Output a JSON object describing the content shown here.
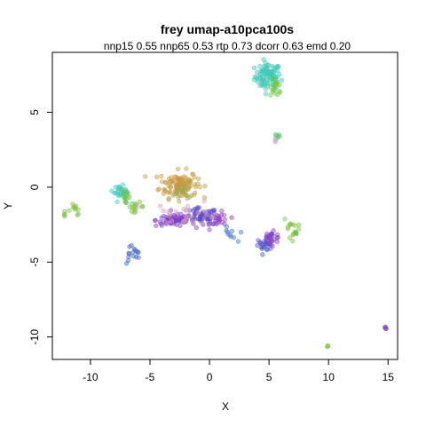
{
  "chart_data": {
    "type": "scatter",
    "title": "frey umap-a10pca100s",
    "subtitle": "nnp15 0.55 nnp65 0.53 rtp 0.73 dcorr 0.63 emd 0.20",
    "xlabel": "X",
    "ylabel": "Y",
    "xlim": [
      -13.2,
      15.8
    ],
    "ylim": [
      -11.5,
      9.0
    ],
    "xticks": [
      -10,
      -5,
      0,
      5,
      10,
      15
    ],
    "yticks": [
      -10,
      -5,
      0,
      5
    ],
    "xtick_labels": [
      "-10",
      "-5",
      "0",
      "5",
      "10",
      "15"
    ],
    "ytick_labels": [
      "-10",
      "-5",
      "0",
      "5"
    ],
    "grid": false,
    "legend": "none",
    "clusters": [
      {
        "color": "#40c8b8",
        "cx": 4.9,
        "cy": 7.4,
        "sx": 0.55,
        "sy": 0.45,
        "n": 90
      },
      {
        "color": "#70c840",
        "cx": 5.6,
        "cy": 6.6,
        "sx": 0.25,
        "sy": 0.3,
        "n": 18
      },
      {
        "color": "#50c870",
        "cx": 5.7,
        "cy": 3.4,
        "sx": 0.1,
        "sy": 0.1,
        "n": 6
      },
      {
        "color": "#c89840",
        "cx": -2.6,
        "cy": 0.2,
        "sx": 0.8,
        "sy": 0.45,
        "n": 110
      },
      {
        "color": "#a0a850",
        "cx": -2.2,
        "cy": -0.3,
        "sx": 0.6,
        "sy": 0.3,
        "n": 20
      },
      {
        "color": "#40c8c0",
        "cx": -7.5,
        "cy": -0.3,
        "sx": 0.25,
        "sy": 0.2,
        "n": 22
      },
      {
        "color": "#60c050",
        "cx": -7.0,
        "cy": -0.6,
        "sx": 0.2,
        "sy": 0.35,
        "n": 15
      },
      {
        "color": "#78c040",
        "cx": -6.2,
        "cy": -1.3,
        "sx": 0.35,
        "sy": 0.15,
        "n": 14
      },
      {
        "color": "#78c040",
        "cx": -11.3,
        "cy": -1.5,
        "sx": 0.3,
        "sy": 0.2,
        "n": 10
      },
      {
        "color": "#78c040",
        "cx": -12.2,
        "cy": -1.8,
        "sx": 0.1,
        "sy": 0.08,
        "n": 4
      },
      {
        "color": "#8040c8",
        "cx": -2.9,
        "cy": -2.2,
        "sx": 0.8,
        "sy": 0.2,
        "n": 70
      },
      {
        "color": "#6048c8",
        "cx": -0.7,
        "cy": -2.0,
        "sx": 0.7,
        "sy": 0.3,
        "n": 55
      },
      {
        "color": "#9040c0",
        "cx": 0.9,
        "cy": -2.2,
        "sx": 0.4,
        "sy": 0.25,
        "n": 22
      },
      {
        "color": "#d8a0c0",
        "cx": -2.0,
        "cy": -1.7,
        "sx": 1.4,
        "sy": 0.4,
        "n": 25
      },
      {
        "color": "#8040c8",
        "cx": 5.1,
        "cy": -3.5,
        "sx": 0.45,
        "sy": 0.25,
        "n": 38
      },
      {
        "color": "#4060c8",
        "cx": 4.6,
        "cy": -3.9,
        "sx": 0.25,
        "sy": 0.15,
        "n": 10
      },
      {
        "color": "#4878c8",
        "cx": 1.7,
        "cy": -3.2,
        "sx": 0.3,
        "sy": 0.25,
        "n": 10
      },
      {
        "color": "#4068c0",
        "cx": -6.5,
        "cy": -4.5,
        "sx": 0.4,
        "sy": 0.35,
        "n": 16
      },
      {
        "color": "#80c040",
        "cx": 6.8,
        "cy": -2.7,
        "sx": 0.3,
        "sy": 0.4,
        "n": 14
      },
      {
        "color": "#70c040",
        "cx": 7.2,
        "cy": -3.0,
        "sx": 0.15,
        "sy": 0.1,
        "n": 5
      },
      {
        "color": "#8040c0",
        "cx": 14.8,
        "cy": -9.4,
        "sx": 0.08,
        "sy": 0.05,
        "n": 4
      },
      {
        "color": "#80c040",
        "cx": 9.9,
        "cy": -10.6,
        "sx": 0.05,
        "sy": 0.05,
        "n": 3
      },
      {
        "color": "#c8a8b8",
        "cx": 5.5,
        "cy": 3.0,
        "sx": 0.15,
        "sy": 0.15,
        "n": 3
      }
    ]
  }
}
